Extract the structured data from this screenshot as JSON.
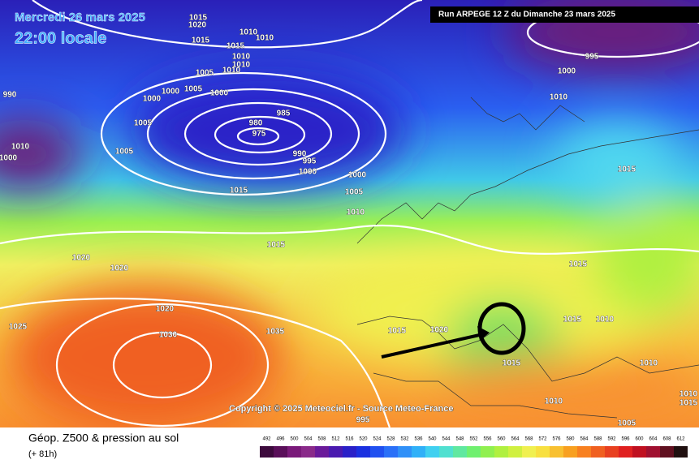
{
  "header": {
    "date": "Mercredi 26 mars 2025",
    "time": "22:00 locale",
    "run": "Run ARPEGE 12 Z du Dimanche 23 mars 2025"
  },
  "copyright": "Copyright © 2025 Meteociel.fr - Source Meteo-France",
  "legend": {
    "title": "Géop. Z500 & pression au sol",
    "subtitle": "(+ 81h)",
    "values": [
      492,
      496,
      500,
      504,
      508,
      512,
      516,
      520,
      524,
      528,
      532,
      536,
      540,
      544,
      548,
      552,
      556,
      560,
      564,
      568,
      572,
      576,
      580,
      584,
      588,
      592,
      596,
      600,
      604,
      608,
      612
    ],
    "colors": [
      "#3d0a3d",
      "#5a0f5a",
      "#7a1a7a",
      "#8a2a8a",
      "#6a1a9a",
      "#4a1ab0",
      "#2a20c8",
      "#1a30e0",
      "#2050f0",
      "#2a70f8",
      "#3090f8",
      "#30b0f8",
      "#40d0f0",
      "#50e0d0",
      "#60e8a0",
      "#70f070",
      "#90f050",
      "#b0f040",
      "#d0f040",
      "#f0f050",
      "#f8e040",
      "#f8c030",
      "#f8a020",
      "#f88020",
      "#f06020",
      "#e84020",
      "#e02020",
      "#c01020",
      "#a01030",
      "#601020",
      "#201010"
    ]
  },
  "isobar_labels": [
    "1015",
    "1020",
    "1015",
    "1010",
    "1010",
    "1015",
    "1010",
    "1010",
    "1005",
    "1010",
    "1000",
    "1005",
    "1000",
    "1000",
    "1005",
    "1005",
    "985",
    "980",
    "975",
    "990",
    "995",
    "1000",
    "1000",
    "1005",
    "1010",
    "1015",
    "1020",
    "1020",
    "1020",
    "1030",
    "1035",
    "1025",
    "1015",
    "1020",
    "1015",
    "1010",
    "1005",
    "1010",
    "1015",
    "1015",
    "1010",
    "1010",
    "1015",
    "1015",
    "1010",
    "1000",
    "995",
    "990",
    "1010",
    "1000",
    "995",
    "1015"
  ]
}
